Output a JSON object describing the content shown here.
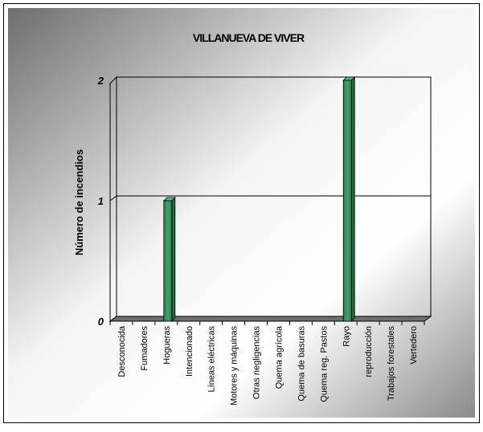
{
  "chart_data": {
    "type": "bar",
    "title": "VILLANUEVA DE VIVER",
    "xlabel": "",
    "ylabel": "Número de incendios",
    "ylim": [
      0,
      2
    ],
    "yticks": [
      0,
      1,
      2
    ],
    "grid": true,
    "categories": [
      "Desconocida",
      "Fumadores",
      "Hogueras",
      "Intencionado",
      "Líneas eléctricas",
      "Motores y máquinas",
      "Otras negligencias",
      "Quema agrícola",
      "Quema de basuras",
      "Quema reg. Pastos",
      "Rayo",
      "reproducción",
      "Trabajos forestales",
      "Vertedero"
    ],
    "values": [
      0,
      0,
      1,
      0,
      0,
      0,
      0,
      0,
      0,
      0,
      2,
      0,
      0,
      0
    ],
    "bar_color": "#2e8b57"
  }
}
